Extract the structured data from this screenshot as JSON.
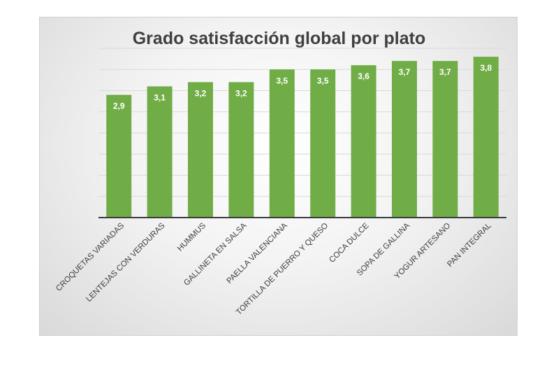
{
  "chart_data": {
    "type": "bar",
    "title": "Grado satisfacción global por plato",
    "categories": [
      "CROQUETAS VARIADAS",
      "LENTEJAS CON VERDURAS",
      "HUMMUS",
      "GALLINETA EN SALSA",
      "PAELLA VALENCIANA",
      "TORTILLA DE PUERRO Y QUESO",
      "COCA DULCE",
      "SOPA DE GALLINA",
      "YOGUR ARTESANO",
      "PAN INTEGRAL"
    ],
    "values": [
      2.9,
      3.1,
      3.2,
      3.2,
      3.5,
      3.5,
      3.6,
      3.7,
      3.7,
      3.8
    ],
    "data_labels": [
      "2,9",
      "3,1",
      "3,2",
      "3,2",
      "3,5",
      "3,5",
      "3,6",
      "3,7",
      "3,7",
      "3,8"
    ],
    "xlabel": "",
    "ylabel": "",
    "ylim": [
      0,
      4
    ],
    "grid": true,
    "legend": "none",
    "colors": {
      "bar": "#70ad47"
    }
  }
}
